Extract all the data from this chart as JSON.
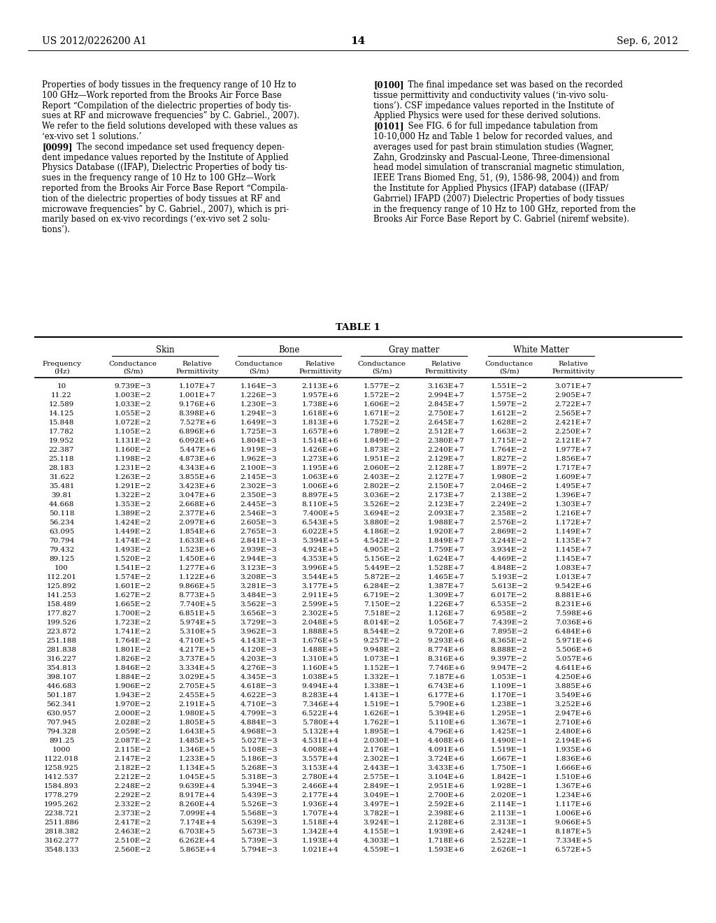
{
  "header_left": "US 2012/0226200 A1",
  "header_right": "Sep. 6, 2012",
  "page_number": "14",
  "left_col_lines": [
    "Properties of body tissues in the frequency range of 10 Hz to",
    "100 GHz—Work reported from the Brooks Air Force Base",
    "Report “Compilation of the dielectric properties of body tis-",
    "sues at RF and microwave frequencies” by C. Gabriel., 2007).",
    "We refer to the field solutions developed with these values as",
    "‘ex-vivo set 1 solutions.’",
    "[0099]   The second impedance set used frequency depen-",
    "dent impedance values reported by the Institute of Applied",
    "Physics Database ((IFAP), Dielectric Properties of body tis-",
    "sues in the frequency range of 10 Hz to 100 GHz—Work",
    "reported from the Brooks Air Force Base Report “Compila-",
    "tion of the dielectric properties of body tissues at RF and",
    "microwave frequencies” by C. Gabriel., 2007), which is pri-",
    "marily based on ex-vivo recordings (‘ex-vivo set 2 solu-",
    "tions’)."
  ],
  "left_col_bold": [
    false,
    false,
    false,
    false,
    false,
    false,
    true,
    false,
    false,
    false,
    false,
    false,
    false,
    false,
    false
  ],
  "right_col_lines": [
    "[0100]   The final impedance set was based on the recorded",
    "tissue permittivity and conductivity values (‘in-vivo solu-",
    "tions’). CSF impedance values reported in the Institute of",
    "Applied Physics were used for these derived solutions.",
    "[0101]   See FIG. 6 for full impedance tabulation from",
    "10-10,000 Hz and Table 1 below for recorded values, and",
    "averages used for past brain stimulation studies (Wagner,",
    "Zahn, Grodzinsky and Pascual-Leone, Three-dimensional",
    "head model simulation of transcranial magnetic stimulation,",
    "IEEE Trans Biomed Eng, 51, (9), 1586-98, 2004)) and from",
    "the Institute for Applied Physics (IFAP) database ((IFAP/",
    "Gabrriel) IFAPD (2007) Dielectric Properties of body tissues",
    "in the frequency range of 10 Hz to 100 GHz, reported from the",
    "Brooks Air Force Base Report by C. Gabriel (niremf website)."
  ],
  "right_col_bold": [
    true,
    false,
    false,
    false,
    true,
    false,
    false,
    false,
    false,
    false,
    false,
    false,
    false,
    false
  ],
  "table_title": "TABLE 1",
  "col_groups": [
    "Skin",
    "Bone",
    "Gray matter",
    "White Matter"
  ],
  "table_data": [
    [
      "10",
      "9.739E−3",
      "1.107E+7",
      "1.164E−3",
      "2.113E+6",
      "1.577E−2",
      "3.163E+7",
      "1.551E−2",
      "3.071E+7"
    ],
    [
      "11.22",
      "1.003E−2",
      "1.001E+7",
      "1.226E−3",
      "1.957E+6",
      "1.572E−2",
      "2.994E+7",
      "1.575E−2",
      "2.905E+7"
    ],
    [
      "12.589",
      "1.033E−2",
      "9.176E+6",
      "1.230E−3",
      "1.738E+6",
      "1.606E−2",
      "2.845E+7",
      "1.597E−2",
      "2.722E+7"
    ],
    [
      "14.125",
      "1.055E−2",
      "8.398E+6",
      "1.294E−3",
      "1.618E+6",
      "1.671E−2",
      "2.750E+7",
      "1.612E−2",
      "2.565E+7"
    ],
    [
      "15.848",
      "1.072E−2",
      "7.527E+6",
      "1.649E−3",
      "1.813E+6",
      "1.752E−2",
      "2.645E+7",
      "1.628E−2",
      "2.421E+7"
    ],
    [
      "17.782",
      "1.105E−2",
      "6.896E+6",
      "1.725E−3",
      "1.657E+6",
      "1.789E−2",
      "2.512E+7",
      "1.663E−2",
      "2.250E+7"
    ],
    [
      "19.952",
      "1.131E−2",
      "6.092E+6",
      "1.804E−3",
      "1.514E+6",
      "1.849E−2",
      "2.380E+7",
      "1.715E−2",
      "2.121E+7"
    ],
    [
      "22.387",
      "1.160E−2",
      "5.447E+6",
      "1.919E−3",
      "1.426E+6",
      "1.873E−2",
      "2.240E+7",
      "1.764E−2",
      "1.977E+7"
    ],
    [
      "25.118",
      "1.198E−2",
      "4.873E+6",
      "1.962E−3",
      "1.273E+6",
      "1.951E−2",
      "2.129E+7",
      "1.827E−2",
      "1.856E+7"
    ],
    [
      "28.183",
      "1.231E−2",
      "4.343E+6",
      "2.100E−3",
      "1.195E+6",
      "2.060E−2",
      "2.128E+7",
      "1.897E−2",
      "1.717E+7"
    ],
    [
      "31.622",
      "1.263E−2",
      "3.855E+6",
      "2.145E−3",
      "1.063E+6",
      "2.403E−2",
      "2.127E+7",
      "1.980E−2",
      "1.609E+7"
    ],
    [
      "35.481",
      "1.291E−2",
      "3.423E+6",
      "2.302E−3",
      "1.006E+6",
      "2.802E−2",
      "2.150E+7",
      "2.046E−2",
      "1.495E+7"
    ],
    [
      "39.81",
      "1.322E−2",
      "3.047E+6",
      "2.350E−3",
      "8.897E+5",
      "3.036E−2",
      "2.173E+7",
      "2.138E−2",
      "1.396E+7"
    ],
    [
      "44.668",
      "1.353E−2",
      "2.668E+6",
      "2.445E−3",
      "8.110E+5",
      "3.526E−2",
      "2.123E+7",
      "2.249E−2",
      "1.303E+7"
    ],
    [
      "50.118",
      "1.389E−2",
      "2.377E+6",
      "2.546E−3",
      "7.400E+5",
      "3.694E−2",
      "2.093E+7",
      "2.358E−2",
      "1.216E+7"
    ],
    [
      "56.234",
      "1.424E−2",
      "2.097E+6",
      "2.605E−3",
      "6.543E+5",
      "3.880E−2",
      "1.988E+7",
      "2.576E−2",
      "1.172E+7"
    ],
    [
      "63.095",
      "1.449E−2",
      "1.854E+6",
      "2.765E−3",
      "6.022E+5",
      "4.186E−2",
      "1.920E+7",
      "2.869E−2",
      "1.149E+7"
    ],
    [
      "70.794",
      "1.474E−2",
      "1.633E+6",
      "2.841E−3",
      "5.394E+5",
      "4.542E−2",
      "1.849E+7",
      "3.244E−2",
      "1.135E+7"
    ],
    [
      "79.432",
      "1.493E−2",
      "1.523E+6",
      "2.939E−3",
      "4.924E+5",
      "4.905E−2",
      "1.759E+7",
      "3.934E−2",
      "1.145E+7"
    ],
    [
      "89.125",
      "1.520E−2",
      "1.450E+6",
      "2.944E−3",
      "4.353E+5",
      "5.156E−2",
      "1.624E+7",
      "4.469E−2",
      "1.145E+7"
    ],
    [
      "100",
      "1.541E−2",
      "1.277E+6",
      "3.123E−3",
      "3.996E+5",
      "5.449E−2",
      "1.528E+7",
      "4.848E−2",
      "1.083E+7"
    ],
    [
      "112.201",
      "1.574E−2",
      "1.122E+6",
      "3.208E−3",
      "3.544E+5",
      "5.872E−2",
      "1.465E+7",
      "5.193E−2",
      "1.013E+7"
    ],
    [
      "125.892",
      "1.601E−2",
      "9.866E+5",
      "3.281E−3",
      "3.177E+5",
      "6.284E−2",
      "1.387E+7",
      "5.613E−2",
      "9.542E+6"
    ],
    [
      "141.253",
      "1.627E−2",
      "8.773E+5",
      "3.484E−3",
      "2.911E+5",
      "6.719E−2",
      "1.309E+7",
      "6.017E−2",
      "8.881E+6"
    ],
    [
      "158.489",
      "1.665E−2",
      "7.740E+5",
      "3.562E−3",
      "2.599E+5",
      "7.150E−2",
      "1.226E+7",
      "6.535E−2",
      "8.231E+6"
    ],
    [
      "177.827",
      "1.700E−2",
      "6.851E+5",
      "3.656E−3",
      "2.302E+5",
      "7.518E−2",
      "1.126E+7",
      "6.958E−2",
      "7.598E+6"
    ],
    [
      "199.526",
      "1.723E−2",
      "5.974E+5",
      "3.729E−3",
      "2.048E+5",
      "8.014E−2",
      "1.056E+7",
      "7.439E−2",
      "7.036E+6"
    ],
    [
      "223.872",
      "1.741E−2",
      "5.310E+5",
      "3.962E−3",
      "1.888E+5",
      "8.544E−2",
      "9.720E+6",
      "7.895E−2",
      "6.484E+6"
    ],
    [
      "251.188",
      "1.764E−2",
      "4.710E+5",
      "4.143E−3",
      "1.676E+5",
      "9.257E−2",
      "9.293E+6",
      "8.365E−2",
      "5.971E+6"
    ],
    [
      "281.838",
      "1.801E−2",
      "4.217E+5",
      "4.120E−3",
      "1.488E+5",
      "9.948E−2",
      "8.774E+6",
      "8.888E−2",
      "5.506E+6"
    ],
    [
      "316.227",
      "1.826E−2",
      "3.737E+5",
      "4.203E−3",
      "1.310E+5",
      "1.073E−1",
      "8.316E+6",
      "9.397E−2",
      "5.057E+6"
    ],
    [
      "354.813",
      "1.846E−2",
      "3.334E+5",
      "4.276E−3",
      "1.160E+5",
      "1.152E−1",
      "7.746E+6",
      "9.947E−2",
      "4.641E+6"
    ],
    [
      "398.107",
      "1.884E−2",
      "3.029E+5",
      "4.345E−3",
      "1.038E+5",
      "1.332E−1",
      "7.187E+6",
      "1.053E−1",
      "4.250E+6"
    ],
    [
      "446.683",
      "1.906E−2",
      "2.705E+5",
      "4.618E−3",
      "9.494E+4",
      "1.338E−1",
      "6.743E+6",
      "1.109E−1",
      "3.885E+6"
    ],
    [
      "501.187",
      "1.943E−2",
      "2.455E+5",
      "4.622E−3",
      "8.283E+4",
      "1.413E−1",
      "6.177E+6",
      "1.170E−1",
      "3.549E+6"
    ],
    [
      "562.341",
      "1.970E−2",
      "2.191E+5",
      "4.710E−3",
      "7.346E+4",
      "1.519E−1",
      "5.790E+6",
      "1.238E−1",
      "3.252E+6"
    ],
    [
      "630.957",
      "2.000E−2",
      "1.980E+5",
      "4.799E−3",
      "6.522E+4",
      "1.626E−1",
      "5.394E+6",
      "1.295E−1",
      "2.947E+6"
    ],
    [
      "707.945",
      "2.028E−2",
      "1.805E+5",
      "4.884E−3",
      "5.780E+4",
      "1.762E−1",
      "5.110E+6",
      "1.367E−1",
      "2.710E+6"
    ],
    [
      "794.328",
      "2.059E−2",
      "1.643E+5",
      "4.968E−3",
      "5.132E+4",
      "1.895E−1",
      "4.796E+6",
      "1.425E−1",
      "2.480E+6"
    ],
    [
      "891.25",
      "2.087E−2",
      "1.485E+5",
      "5.027E−3",
      "4.531E+4",
      "2.030E−1",
      "4.408E+6",
      "1.490E−1",
      "2.194E+6"
    ],
    [
      "1000",
      "2.115E−2",
      "1.346E+5",
      "5.108E−3",
      "4.008E+4",
      "2.176E−1",
      "4.091E+6",
      "1.519E−1",
      "1.935E+6"
    ],
    [
      "1122.018",
      "2.147E−2",
      "1.233E+5",
      "5.186E−3",
      "3.557E+4",
      "2.302E−1",
      "3.724E+6",
      "1.667E−1",
      "1.836E+6"
    ],
    [
      "1258.925",
      "2.182E−2",
      "1.134E+5",
      "5.268E−3",
      "3.153E+4",
      "2.443E−1",
      "3.433E+6",
      "1.750E−1",
      "1.666E+6"
    ],
    [
      "1412.537",
      "2.212E−2",
      "1.045E+5",
      "5.318E−3",
      "2.780E+4",
      "2.575E−1",
      "3.104E+6",
      "1.842E−1",
      "1.510E+6"
    ],
    [
      "1584.893",
      "2.248E−2",
      "9.639E+4",
      "5.394E−3",
      "2.466E+4",
      "2.849E−1",
      "2.951E+6",
      "1.928E−1",
      "1.367E+6"
    ],
    [
      "1778.279",
      "2.292E−2",
      "8.917E+4",
      "5.439E−3",
      "2.177E+4",
      "3.049E−1",
      "2.700E+6",
      "2.020E−1",
      "1.234E+6"
    ],
    [
      "1995.262",
      "2.332E−2",
      "8.260E+4",
      "5.526E−3",
      "1.936E+4",
      "3.497E−1",
      "2.592E+6",
      "2.114E−1",
      "1.117E+6"
    ],
    [
      "2238.721",
      "2.373E−2",
      "7.099E+4",
      "5.568E−3",
      "1.707E+4",
      "3.782E−1",
      "2.398E+6",
      "2.113E−1",
      "1.006E+6"
    ],
    [
      "2511.886",
      "2.417E−2",
      "7.174E+4",
      "5.639E−3",
      "1.518E+4",
      "3.924E−1",
      "2.128E+6",
      "2.313E−1",
      "9.066E+5"
    ],
    [
      "2818.382",
      "2.463E−2",
      "6.703E+5",
      "5.673E−3",
      "1.342E+4",
      "4.155E−1",
      "1.939E+6",
      "2.424E−1",
      "8.187E+5"
    ],
    [
      "3162.277",
      "2.510E−2",
      "6.262E+4",
      "5.739E−3",
      "1.193E+4",
      "4.303E−1",
      "1.718E+6",
      "2.522E−1",
      "7.334E+5"
    ],
    [
      "3548.133",
      "2.560E−2",
      "5.865E+4",
      "5.794E−3",
      "1.021E+4",
      "4.559E−1",
      "1.593E+6",
      "2.626E−1",
      "6.572E+5"
    ]
  ],
  "bg_color": "#ffffff",
  "text_color": "#000000"
}
